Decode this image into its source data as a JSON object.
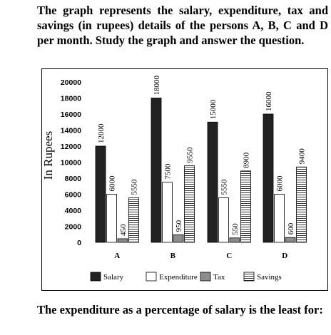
{
  "question_intro": "The graph represents the salary, expenditure, tax and savings (in rupees) details of the persons A, B, C and D per month. Study the graph and answer the question.",
  "question_prompt": "The expenditure as a percentage of salary is the least for:",
  "colors": {
    "salary": "#222222",
    "expenditure": "#ffffff",
    "tax": "#8c8c8c",
    "savings": "#ffffff"
  },
  "chart_data": {
    "type": "bar",
    "categories": [
      "A",
      "B",
      "C",
      "D"
    ],
    "series": [
      {
        "name": "Salary",
        "values": [
          12000,
          18000,
          15000,
          16000
        ],
        "labels": [
          "12000",
          "18000",
          "15000",
          "16000"
        ]
      },
      {
        "name": "Expenditure",
        "values": [
          6000,
          7500,
          5550,
          6000
        ],
        "labels": [
          "6000",
          "7500",
          "5550",
          "6000"
        ]
      },
      {
        "name": "Tax",
        "values": [
          450,
          950,
          550,
          600
        ],
        "labels": [
          "450",
          "950",
          "550",
          "600"
        ]
      },
      {
        "name": "Savings",
        "values": [
          5550,
          9550,
          8900,
          9400
        ],
        "labels": [
          "5550",
          "9550",
          "8900",
          "9400"
        ]
      }
    ],
    "ylabel": "In Rupees",
    "ylim": [
      0,
      20000
    ],
    "yticks": [
      0,
      2000,
      4000,
      6000,
      8000,
      10000,
      12000,
      14000,
      16000,
      18000,
      20000
    ],
    "legend_position": "bottom",
    "grid": false
  }
}
